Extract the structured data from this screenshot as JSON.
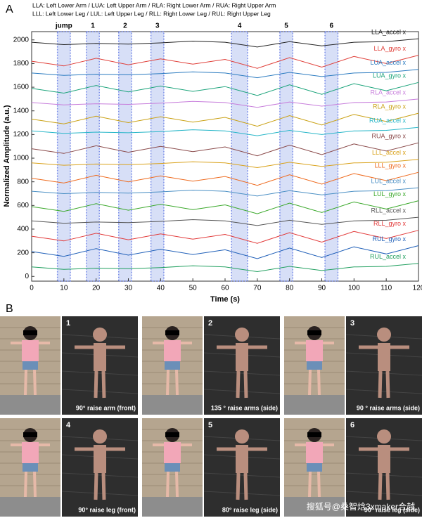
{
  "header": {
    "lines": [
      "LLA: Left Lower Arm / LUA: Left Upper Arm / RLA: Right Lower Arm / RUA: Right Upper Arm",
      "LLL: Left Lower Leg / LUL: Left Upper Leg / RLL: Right Lower Leg / RUL: Right Upper Leg"
    ]
  },
  "panel_labels": [
    "A",
    "B"
  ],
  "chart_data": {
    "type": "line",
    "x_label": "Time (s)",
    "y_label": "Normalized Amplitude (a.u.)",
    "xlim": [
      0,
      120
    ],
    "xticks": [
      0,
      10,
      20,
      30,
      40,
      50,
      60,
      70,
      80,
      90,
      100,
      110,
      120
    ],
    "ylim": [
      -40,
      2070
    ],
    "yticks": [
      0,
      200,
      400,
      600,
      800,
      1000,
      1200,
      1400,
      1600,
      1800,
      2000
    ],
    "grid": false,
    "regions": [
      {
        "label": "jump",
        "start": 8,
        "end": 12
      },
      {
        "label": "1",
        "start": 17,
        "end": 21
      },
      {
        "label": "2",
        "start": 27,
        "end": 31
      },
      {
        "label": "3",
        "start": 37,
        "end": 41
      },
      {
        "label": "4",
        "start": 62,
        "end": 67
      },
      {
        "label": "5",
        "start": 77,
        "end": 81
      },
      {
        "label": "6",
        "start": 91,
        "end": 95
      }
    ],
    "x": [
      0,
      10,
      20,
      30,
      40,
      50,
      60,
      70,
      80,
      90,
      100,
      110,
      120
    ],
    "series": [
      {
        "name": "LLA_accel x",
        "color": "#222222",
        "values": [
          1980,
          1960,
          1970,
          1965,
          1975,
          1990,
          1980,
          1940,
          1985,
          1950,
          1980,
          1985,
          2010
        ]
      },
      {
        "name": "LLA_gyro x",
        "color": "#e0403a",
        "values": [
          1820,
          1780,
          1845,
          1790,
          1840,
          1795,
          1835,
          1760,
          1850,
          1770,
          1860,
          1800,
          1870
        ]
      },
      {
        "name": "LUA_accel x",
        "color": "#2b7bc0",
        "values": [
          1720,
          1700,
          1710,
          1705,
          1715,
          1730,
          1720,
          1680,
          1725,
          1690,
          1720,
          1725,
          1750
        ]
      },
      {
        "name": "LUA_gyro x",
        "color": "#1aa37a",
        "values": [
          1590,
          1550,
          1615,
          1560,
          1610,
          1565,
          1605,
          1530,
          1620,
          1540,
          1630,
          1570,
          1640
        ]
      },
      {
        "name": "RLA_accel x",
        "color": "#c77ddb",
        "values": [
          1470,
          1450,
          1460,
          1455,
          1465,
          1480,
          1470,
          1430,
          1475,
          1440,
          1470,
          1475,
          1500
        ]
      },
      {
        "name": "RLA_gyro x",
        "color": "#c9a012",
        "values": [
          1330,
          1290,
          1355,
          1300,
          1350,
          1305,
          1345,
          1270,
          1360,
          1280,
          1370,
          1310,
          1380
        ]
      },
      {
        "name": "RUA_accel x",
        "color": "#27b6c8",
        "values": [
          1230,
          1210,
          1220,
          1215,
          1225,
          1240,
          1230,
          1190,
          1235,
          1200,
          1230,
          1235,
          1260
        ]
      },
      {
        "name": "RUA_gyro x",
        "color": "#8a4a4a",
        "values": [
          1080,
          1040,
          1105,
          1050,
          1100,
          1055,
          1095,
          1020,
          1110,
          1030,
          1120,
          1060,
          1130
        ]
      },
      {
        "name": "LLL_accel x",
        "color": "#d9a21b",
        "values": [
          960,
          940,
          950,
          945,
          955,
          970,
          960,
          920,
          965,
          930,
          960,
          965,
          990
        ]
      },
      {
        "name": "LLL_gyro x",
        "color": "#ee6a1e",
        "values": [
          830,
          790,
          855,
          800,
          850,
          805,
          845,
          770,
          860,
          780,
          870,
          810,
          880
        ]
      },
      {
        "name": "LUL_accel x",
        "color": "#4a8fc4",
        "values": [
          720,
          700,
          710,
          705,
          715,
          730,
          720,
          680,
          725,
          690,
          720,
          725,
          750
        ]
      },
      {
        "name": "LUL_gyro x",
        "color": "#3aa82a",
        "values": [
          590,
          550,
          615,
          560,
          610,
          565,
          605,
          530,
          620,
          540,
          630,
          570,
          640
        ]
      },
      {
        "name": "RLL_accel x",
        "color": "#555555",
        "values": [
          470,
          450,
          460,
          455,
          465,
          480,
          470,
          430,
          475,
          440,
          470,
          475,
          500
        ]
      },
      {
        "name": "RLL_gyro x",
        "color": "#e23b3b",
        "values": [
          340,
          300,
          365,
          310,
          360,
          315,
          355,
          280,
          370,
          290,
          380,
          320,
          390
        ]
      },
      {
        "name": "RUL_gyro x",
        "color": "#1f5fb8",
        "values": [
          210,
          170,
          235,
          180,
          230,
          185,
          225,
          150,
          240,
          160,
          250,
          190,
          260
        ]
      },
      {
        "name": "RUL_accel x",
        "color": "#22a060",
        "values": [
          80,
          60,
          70,
          65,
          75,
          90,
          80,
          40,
          85,
          50,
          80,
          85,
          110
        ]
      }
    ]
  },
  "panels": [
    {
      "number": "1",
      "caption": "90° raise arm (front)"
    },
    {
      "number": "2",
      "caption": "135 ° raise arms (side)"
    },
    {
      "number": "3",
      "caption": "90 ° raise arms (side)"
    },
    {
      "number": "4",
      "caption": "90° raise leg (front)"
    },
    {
      "number": "5",
      "caption": "80° raise leg (side)"
    },
    {
      "number": "6",
      "caption": "90° raise leg (side)"
    }
  ],
  "watermark": "搜狐号@桑智焓3xmaker合越"
}
